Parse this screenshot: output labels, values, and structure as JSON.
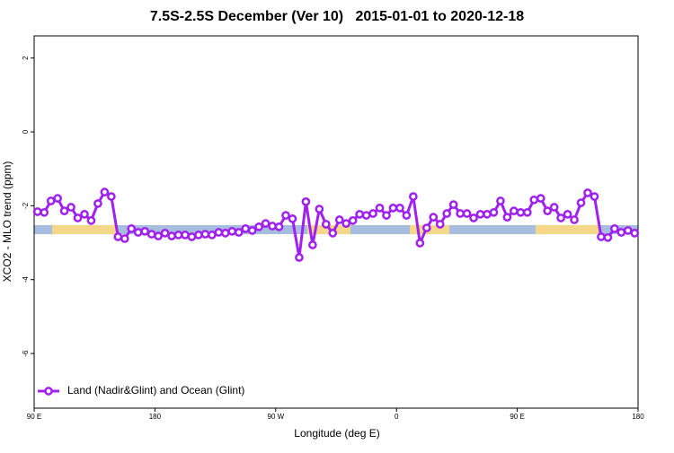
{
  "chart_data": {
    "type": "line",
    "title": "7.5S-2.5S December (Ver 10)   2015-01-01 to 2020-12-18",
    "xlabel": "Longitude (deg E)",
    "ylabel": "XCO2 - MLO trend (ppm)",
    "xlim": [
      90,
      540
    ],
    "ylim": [
      -7.48,
      2.6
    ],
    "xticks": [
      {
        "value": 90,
        "label": "90 E"
      },
      180,
      {
        "value": 270,
        "label": "90 W"
      },
      {
        "value": 360,
        "label": "0"
      },
      {
        "value": 450,
        "label": "90 E"
      },
      {
        "value": 540,
        "label": "180"
      }
    ],
    "yticks": [
      -6,
      -4,
      -2,
      0,
      2
    ],
    "legend": "bottom-left",
    "x": [
      92.5,
      97.5,
      102.5,
      107.5,
      112.5,
      117.5,
      122.5,
      127.5,
      132.5,
      137.5,
      142.5,
      147.5,
      152.5,
      157.5,
      162.5,
      167.5,
      172.5,
      177.5,
      182.5,
      187.5,
      192.5,
      197.5,
      202.5,
      207.5,
      212.5,
      217.5,
      222.5,
      227.5,
      232.5,
      237.5,
      242.5,
      247.5,
      252.5,
      257.5,
      262.5,
      267.5,
      272.5,
      277.5,
      282.5,
      287.5,
      292.5,
      297.5,
      302.5,
      307.5,
      312.5,
      317.5,
      322.5,
      327.5,
      332.5,
      337.5,
      342.5,
      347.5,
      352.5,
      357.5,
      362.5,
      367.5,
      372.5,
      377.5,
      382.5,
      387.5,
      392.5,
      397.5,
      402.5,
      407.5,
      412.5,
      417.5,
      422.5,
      427.5,
      432.5,
      437.5,
      442.5,
      447.5,
      452.5,
      457.5,
      462.5,
      467.5,
      472.5,
      477.5,
      482.5,
      487.5,
      492.5,
      497.5,
      502.5,
      507.5,
      512.5,
      517.5,
      522.5,
      527.5,
      532.5,
      537.5
    ],
    "series": [
      {
        "name": "Land (Nadir&Glint) and Ocean (Glint)",
        "color": "#a020f0",
        "values": [
          -2.16,
          -2.18,
          -1.87,
          -1.8,
          -2.14,
          -2.04,
          -2.33,
          -2.23,
          -2.4,
          -1.94,
          -1.63,
          -1.75,
          -2.84,
          -2.89,
          -2.62,
          -2.72,
          -2.69,
          -2.77,
          -2.82,
          -2.74,
          -2.82,
          -2.79,
          -2.79,
          -2.84,
          -2.79,
          -2.77,
          -2.79,
          -2.72,
          -2.74,
          -2.69,
          -2.72,
          -2.62,
          -2.67,
          -2.57,
          -2.48,
          -2.55,
          -2.57,
          -2.26,
          -2.35,
          -3.4,
          -1.89,
          -3.06,
          -2.09,
          -2.5,
          -2.74,
          -2.38,
          -2.48,
          -2.4,
          -2.23,
          -2.26,
          -2.21,
          -2.06,
          -2.26,
          -2.06,
          -2.06,
          -2.26,
          -1.75,
          -3.01,
          -2.6,
          -2.31,
          -2.5,
          -2.21,
          -1.97,
          -2.21,
          -2.21,
          -2.33,
          -2.23,
          -2.23,
          -2.18,
          -1.87,
          -2.31,
          -2.14,
          -2.18,
          -2.18,
          -1.84,
          -1.8,
          -2.14,
          -2.04,
          -2.33,
          -2.23,
          -2.38,
          -1.92,
          -1.65,
          -1.75,
          -2.84,
          -2.86,
          -2.62,
          -2.72,
          -2.67,
          -2.74
        ]
      }
    ]
  }
}
